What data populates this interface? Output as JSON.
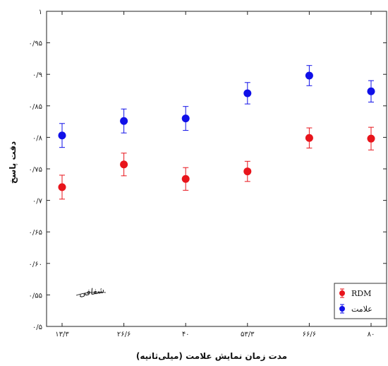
{
  "chart_data": {
    "type": "scatter",
    "xlabel": "مدت زمان نمایش علامت (میلی‌ثانیه)",
    "ylabel": "دقت پاسخ",
    "categories": [
      "۱۳/۳",
      "۲۶/۶",
      "۴۰",
      "۵۳/۳",
      "۶۶/۶",
      "۸۰"
    ],
    "ylim": [
      0.5,
      1.0
    ],
    "yticks": [
      0.5,
      0.55,
      0.6,
      0.65,
      0.7,
      0.75,
      0.8,
      0.85,
      0.9,
      0.95,
      1.0
    ],
    "ytick_labels": [
      "۰/۵",
      "۰/۵۵",
      "۰/۶۰",
      "۰/۶۵",
      "۰/۷",
      "۰/۷۵",
      "۰/۸",
      "۰/۸۵",
      "۰/۹",
      "۰/۹۵",
      "۱"
    ],
    "grid": false,
    "legend_position": "bottom-right",
    "series": [
      {
        "name": "RDM",
        "color": "#e8141b",
        "values": [
          0.721,
          0.757,
          0.734,
          0.746,
          0.799,
          0.798
        ],
        "errors": [
          0.019,
          0.018,
          0.018,
          0.016,
          0.016,
          0.018
        ]
      },
      {
        "name": "علامت",
        "color": "#1010e8",
        "values": [
          0.803,
          0.826,
          0.83,
          0.87,
          0.898,
          0.873
        ],
        "errors": [
          0.019,
          0.019,
          0.019,
          0.017,
          0.016,
          0.017
        ]
      }
    ],
    "signature": "شفافی"
  }
}
